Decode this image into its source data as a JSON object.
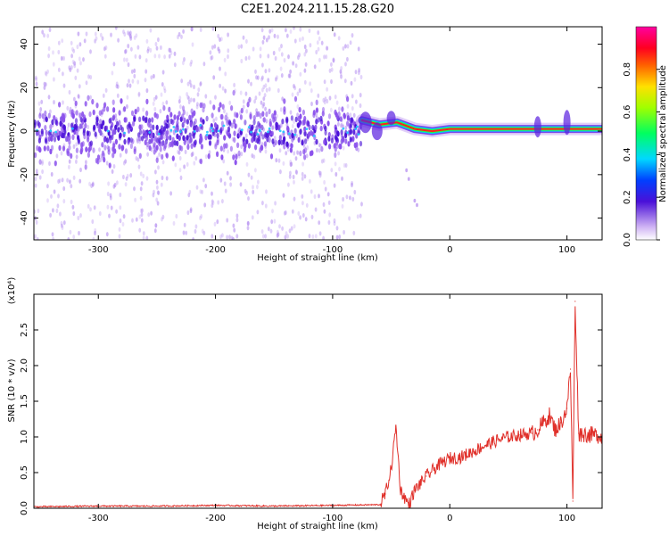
{
  "figure_title": "C2E1.2024.211.15.28.G20",
  "colors": {
    "signal": "#e0302a",
    "dense_core": "#4a10d8",
    "scatter": "#b088f0"
  },
  "chart_data": [
    {
      "type": "heatmap",
      "xlabel": "Height of straight line (km)",
      "ylabel": "Frequency (Hz)",
      "xlim": [
        -355,
        130
      ],
      "ylim": [
        -50,
        48
      ],
      "x_ticks": [
        -300,
        -200,
        -100,
        0,
        100
      ],
      "x_tick_labels": [
        "-300",
        "-200",
        "-100",
        "0",
        "100"
      ],
      "y_ticks": [
        -40,
        -20,
        0,
        20,
        40
      ],
      "y_tick_labels": [
        "-40",
        "-20",
        "0",
        "20",
        "40"
      ],
      "colorbar": {
        "label": "Normalized spectral amplitude",
        "ticks": [
          0.0,
          0.2,
          0.4,
          0.6,
          0.8
        ],
        "tick_labels": [
          "0.0",
          "0.2",
          "0.4",
          "0.6",
          "0.8"
        ],
        "range": [
          0.0,
          1.0
        ],
        "colormap": "hsv"
      },
      "description_points": {
        "noise_region_x": [
          -355,
          -75
        ],
        "signal_line_x": [
          -75,
          130
        ],
        "signal_line": [
          {
            "x": -75,
            "y": 5
          },
          {
            "x": -60,
            "y": 3
          },
          {
            "x": -45,
            "y": 4
          },
          {
            "x": -30,
            "y": 1
          },
          {
            "x": -15,
            "y": 0
          },
          {
            "x": 0,
            "y": 1
          },
          {
            "x": 25,
            "y": 1
          },
          {
            "x": 50,
            "y": 1
          },
          {
            "x": 75,
            "y": 1
          },
          {
            "x": 100,
            "y": 1
          },
          {
            "x": 130,
            "y": 1
          }
        ]
      },
      "grid": false
    },
    {
      "type": "line",
      "xlabel": "Height of straight line (km)",
      "ylabel": "SNR (10 * v/v)",
      "scale_label": "(x10⁴)",
      "xlim": [
        -355,
        130
      ],
      "ylim": [
        0,
        3.0
      ],
      "x_ticks": [
        -300,
        -200,
        -100,
        0,
        100
      ],
      "x_tick_labels": [
        "-300",
        "-200",
        "-100",
        "0",
        "100"
      ],
      "y_ticks": [
        0.0,
        0.5,
        1.0,
        1.5,
        2.0,
        2.5
      ],
      "y_tick_labels": [
        "0.0",
        "0.5",
        "1.0",
        "1.5",
        "2.0",
        "2.5"
      ],
      "series": [
        {
          "color": "#e0302a",
          "points": [
            [
              -355,
              0.02
            ],
            [
              -300,
              0.03
            ],
            [
              -250,
              0.03
            ],
            [
              -200,
              0.04
            ],
            [
              -150,
              0.03
            ],
            [
              -100,
              0.04
            ],
            [
              -60,
              0.05
            ],
            [
              -55,
              0.2
            ],
            [
              -50,
              0.55
            ],
            [
              -46,
              1.15
            ],
            [
              -42,
              0.25
            ],
            [
              -35,
              0.05
            ],
            [
              -30,
              0.25
            ],
            [
              -20,
              0.45
            ],
            [
              -10,
              0.6
            ],
            [
              0,
              0.7
            ],
            [
              10,
              0.72
            ],
            [
              20,
              0.8
            ],
            [
              30,
              0.88
            ],
            [
              40,
              0.95
            ],
            [
              50,
              1.0
            ],
            [
              60,
              1.03
            ],
            [
              70,
              1.05
            ],
            [
              75,
              1.1
            ],
            [
              80,
              1.2
            ],
            [
              85,
              1.3
            ],
            [
              90,
              1.1
            ],
            [
              95,
              1.2
            ],
            [
              100,
              1.4
            ],
            [
              103,
              1.95
            ],
            [
              105,
              0.1
            ],
            [
              107,
              2.9
            ],
            [
              110,
              1.05
            ],
            [
              120,
              1.03
            ],
            [
              130,
              1.02
            ]
          ]
        }
      ],
      "grid": false
    }
  ]
}
